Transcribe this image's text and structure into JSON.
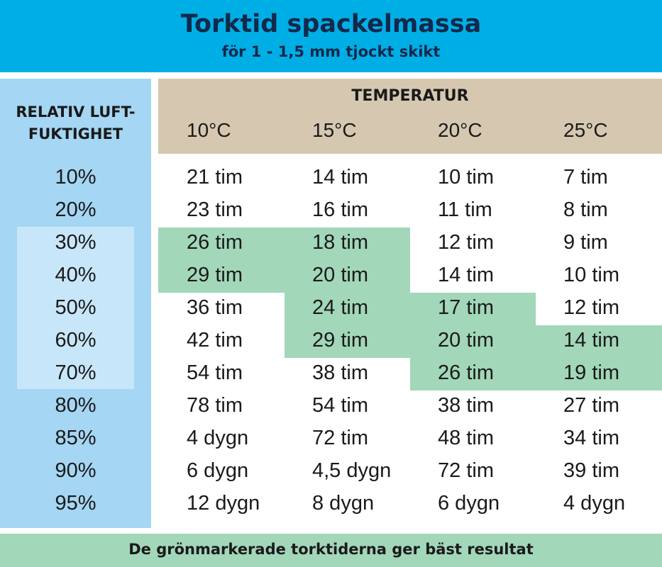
{
  "header": {
    "title": "Torktid spackelmassa",
    "subtitle": "för 1 - 1,5 mm tjockt skikt"
  },
  "table": {
    "row_header_title": [
      "RELATIV LUFT-",
      "FUKTIGHET"
    ],
    "column_group_title": "TEMPERATUR",
    "temperatures": [
      "10°C",
      "15°C",
      "20°C",
      "25°C"
    ],
    "rows": [
      {
        "humidity": "10%",
        "cells": [
          "21 tim",
          "14 tim",
          "10 tim",
          "7 tim"
        ],
        "highlight": [
          false,
          false,
          false,
          false
        ]
      },
      {
        "humidity": "20%",
        "cells": [
          "23 tim",
          "16 tim",
          "11 tim",
          "8 tim"
        ],
        "highlight": [
          false,
          false,
          false,
          false
        ]
      },
      {
        "humidity": "30%",
        "cells": [
          "26 tim",
          "18 tim",
          "12 tim",
          "9 tim"
        ],
        "highlight": [
          true,
          true,
          false,
          false
        ]
      },
      {
        "humidity": "40%",
        "cells": [
          "29 tim",
          "20 tim",
          "14 tim",
          "10 tim"
        ],
        "highlight": [
          true,
          true,
          false,
          false
        ]
      },
      {
        "humidity": "50%",
        "cells": [
          "36 tim",
          "24 tim",
          "17 tim",
          "12 tim"
        ],
        "highlight": [
          false,
          true,
          true,
          false
        ]
      },
      {
        "humidity": "60%",
        "cells": [
          "42 tim",
          "29 tim",
          "20 tim",
          "14 tim"
        ],
        "highlight": [
          false,
          true,
          true,
          true
        ]
      },
      {
        "humidity": "70%",
        "cells": [
          "54 tim",
          "38 tim",
          "26 tim",
          "19 tim"
        ],
        "highlight": [
          false,
          false,
          true,
          true
        ]
      },
      {
        "humidity": "80%",
        "cells": [
          "78 tim",
          "54 tim",
          "38 tim",
          "27 tim"
        ],
        "highlight": [
          false,
          false,
          false,
          false
        ]
      },
      {
        "humidity": "85%",
        "cells": [
          "4 dygn",
          "72 tim",
          "48 tim",
          "34 tim"
        ],
        "highlight": [
          false,
          false,
          false,
          false
        ]
      },
      {
        "humidity": "90%",
        "cells": [
          "6 dygn",
          "4,5 dygn",
          "72 tim",
          "39 tim"
        ],
        "highlight": [
          false,
          false,
          false,
          false
        ]
      },
      {
        "humidity": "95%",
        "cells": [
          "12 dygn",
          "8 dygn",
          "6 dygn",
          "4 dygn"
        ],
        "highlight": [
          false,
          false,
          false,
          false
        ]
      }
    ]
  },
  "footer": {
    "note": "De grönmarkerade torktiderna ger bäst resultat"
  },
  "colors": {
    "banner": "#00aee6",
    "humidity_column": "#a5d6f3",
    "temperature_header": "#d6c8b0",
    "best_result_highlight": "#a2d7b9"
  }
}
